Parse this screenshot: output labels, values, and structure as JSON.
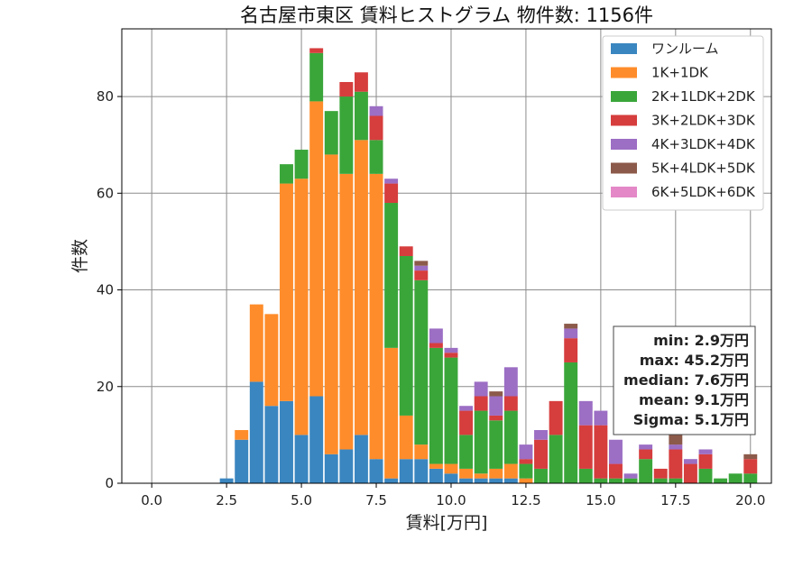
{
  "chart_data": {
    "type": "bar",
    "stacked": true,
    "title": "名古屋市東区 賃料ヒストグラム 物件数: 1156件",
    "xlabel": "賃料[万円]",
    "ylabel": "件数",
    "xlim": [
      -1.0,
      20.7
    ],
    "ylim": [
      0,
      94
    ],
    "grid": true,
    "legend_position": "top-right",
    "xticks": [
      "0.0",
      "2.5",
      "5.0",
      "7.5",
      "10.0",
      "12.5",
      "15.0",
      "17.5",
      "20.0"
    ],
    "yticks": [
      "0",
      "20",
      "40",
      "60",
      "80"
    ],
    "bin_width": 0.5,
    "x": [
      2.5,
      3.0,
      3.5,
      4.0,
      4.5,
      5.0,
      5.5,
      6.0,
      6.5,
      7.0,
      7.5,
      8.0,
      8.5,
      9.0,
      9.5,
      10.0,
      10.5,
      11.0,
      11.5,
      12.0,
      12.5,
      13.0,
      13.5,
      14.0,
      14.5,
      15.0,
      15.5,
      16.0,
      16.5,
      17.0,
      17.5,
      18.0,
      18.5,
      19.0,
      19.5,
      20.0
    ],
    "series": [
      {
        "name": "ワンルーム",
        "color": "#3a86c0",
        "values": [
          1,
          9,
          21,
          16,
          17,
          10,
          18,
          6,
          7,
          10,
          5,
          1,
          5,
          5,
          3,
          2,
          1,
          1,
          1,
          1,
          0,
          0,
          0,
          0,
          0,
          0,
          0,
          0,
          0,
          0,
          0,
          0,
          0,
          0,
          0,
          0
        ]
      },
      {
        "name": "1K+1DK",
        "color": "#ff8c2a",
        "values": [
          0,
          2,
          16,
          19,
          45,
          53,
          61,
          62,
          57,
          61,
          59,
          27,
          9,
          3,
          1,
          2,
          2,
          1,
          2,
          3,
          1,
          0,
          0,
          0,
          0,
          0,
          0,
          0,
          0,
          0,
          0,
          0,
          0,
          0,
          0,
          0
        ]
      },
      {
        "name": "2K+1LDK+2DK",
        "color": "#3aa63a",
        "values": [
          0,
          0,
          0,
          0,
          4,
          6,
          10,
          9,
          16,
          10,
          7,
          30,
          33,
          34,
          24,
          22,
          7,
          13,
          10,
          11,
          3,
          3,
          10,
          25,
          3,
          1,
          1,
          1,
          5,
          1,
          1,
          0,
          3,
          1,
          2,
          2
        ]
      },
      {
        "name": "3K+2LDK+3DK",
        "color": "#d63d3d",
        "values": [
          0,
          0,
          0,
          0,
          0,
          0,
          1,
          0,
          3,
          4,
          5,
          4,
          2,
          2,
          1,
          1,
          5,
          3,
          1,
          3,
          1,
          6,
          7,
          5,
          9,
          11,
          3,
          0,
          2,
          2,
          6,
          4,
          3,
          0,
          0,
          3
        ]
      },
      {
        "name": "4K+3LDK+4DK",
        "color": "#9c6ec4",
        "values": [
          0,
          0,
          0,
          0,
          0,
          0,
          0,
          0,
          0,
          0,
          2,
          1,
          0,
          1,
          3,
          1,
          1,
          3,
          4,
          6,
          3,
          2,
          0,
          2,
          5,
          3,
          5,
          1,
          1,
          0,
          1,
          1,
          1,
          0,
          0,
          0
        ]
      },
      {
        "name": "5K+4LDK+5DK",
        "color": "#8c5a4a",
        "values": [
          0,
          0,
          0,
          0,
          0,
          0,
          0,
          0,
          0,
          0,
          0,
          0,
          0,
          1,
          0,
          0,
          0,
          0,
          1,
          0,
          0,
          0,
          0,
          1,
          0,
          0,
          0,
          0,
          0,
          0,
          2,
          0,
          0,
          0,
          0,
          1
        ]
      },
      {
        "name": "6K+5LDK+6DK",
        "color": "#e488c8",
        "values": [
          0,
          0,
          0,
          0,
          0,
          0,
          0,
          0,
          0,
          0,
          0,
          0,
          0,
          0,
          0,
          0,
          0,
          0,
          0,
          0,
          0,
          0,
          0,
          0,
          0,
          0,
          0,
          0,
          0,
          0,
          0,
          0,
          0,
          0,
          0,
          0
        ]
      }
    ],
    "stats_box": [
      "min: 2.9万円",
      "max: 45.2万円",
      "median: 7.6万円",
      "mean: 9.1万円",
      "Sigma: 5.1万円"
    ]
  }
}
